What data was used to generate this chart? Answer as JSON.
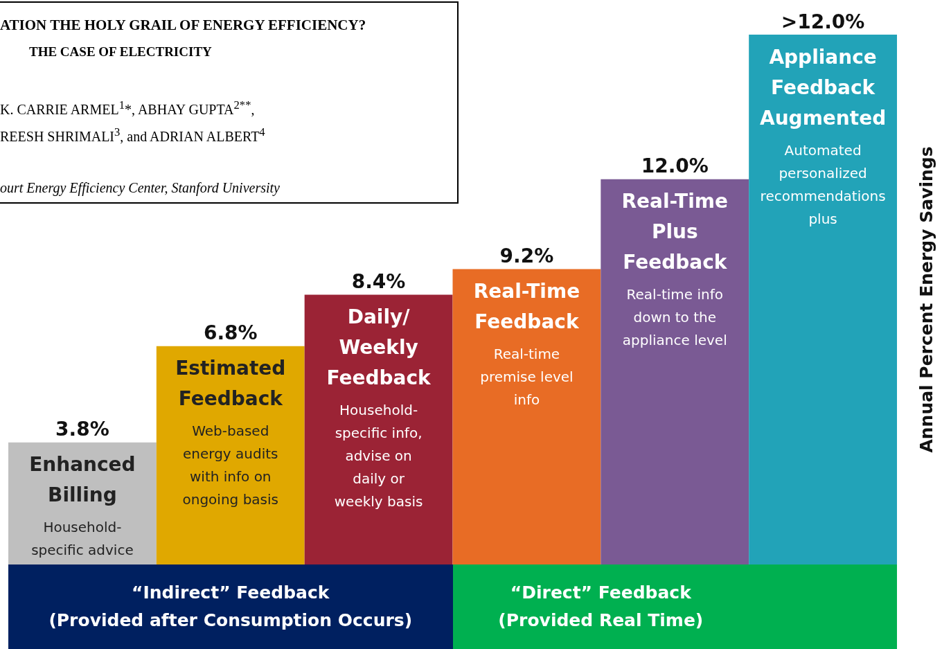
{
  "chart_data": {
    "type": "bar",
    "title": "ATION THE HOLY GRAIL OF ENERGY EFFICIENCY?",
    "subtitle": "THE CASE OF ELECTRICITY",
    "ylabel": "Annual Percent Energy Savings",
    "categories": [
      "Enhanced\nBilling",
      "Estimated\nFeedback",
      "Daily/\nWeekly\nFeedback",
      "Real-Time\nFeedback",
      "Real-Time\nPlus\nFeedback",
      "Appliance\nFeedback\nAugmented"
    ],
    "values": [
      3.8,
      6.8,
      8.4,
      9.2,
      12.0,
      16.5
    ],
    "value_labels": [
      "3.8%",
      "6.8%",
      "8.4%",
      "9.2%",
      "12.0%",
      ">12.0%"
    ],
    "colors": [
      "#bfbfbf",
      "#e0a800",
      "#9b2335",
      "#e86c25",
      "#7a5a94",
      "#22a3b8"
    ],
    "annotations": [
      "K. CARRIE ARMEL$^{1}$*, ABHAY GUPTA$^{2**}$,",
      "REESH SHRIMALI$^{3}$, and ADRIAN ALBERT$^{4}$",
      "ourt Energy Efficiency Center, Stanford University",
      "Household-\nspecific advice",
      "Web-based\nenergy audits\nwith info on\nongoing basis",
      "Household-\nspecific info,\nadvise on\ndaily or\nweekly basis",
      "Real-time\npremise level\ninfo",
      "Real-time info\ndown to the\nappliance level",
      "Automated\npersonalized\nrecommendations\nplus",
      "“Indirect” Feedback\n(Provided after Consumption Occurs)",
      "“Direct” Feedback\n(Provided Real Time)"
    ]
  }
}
